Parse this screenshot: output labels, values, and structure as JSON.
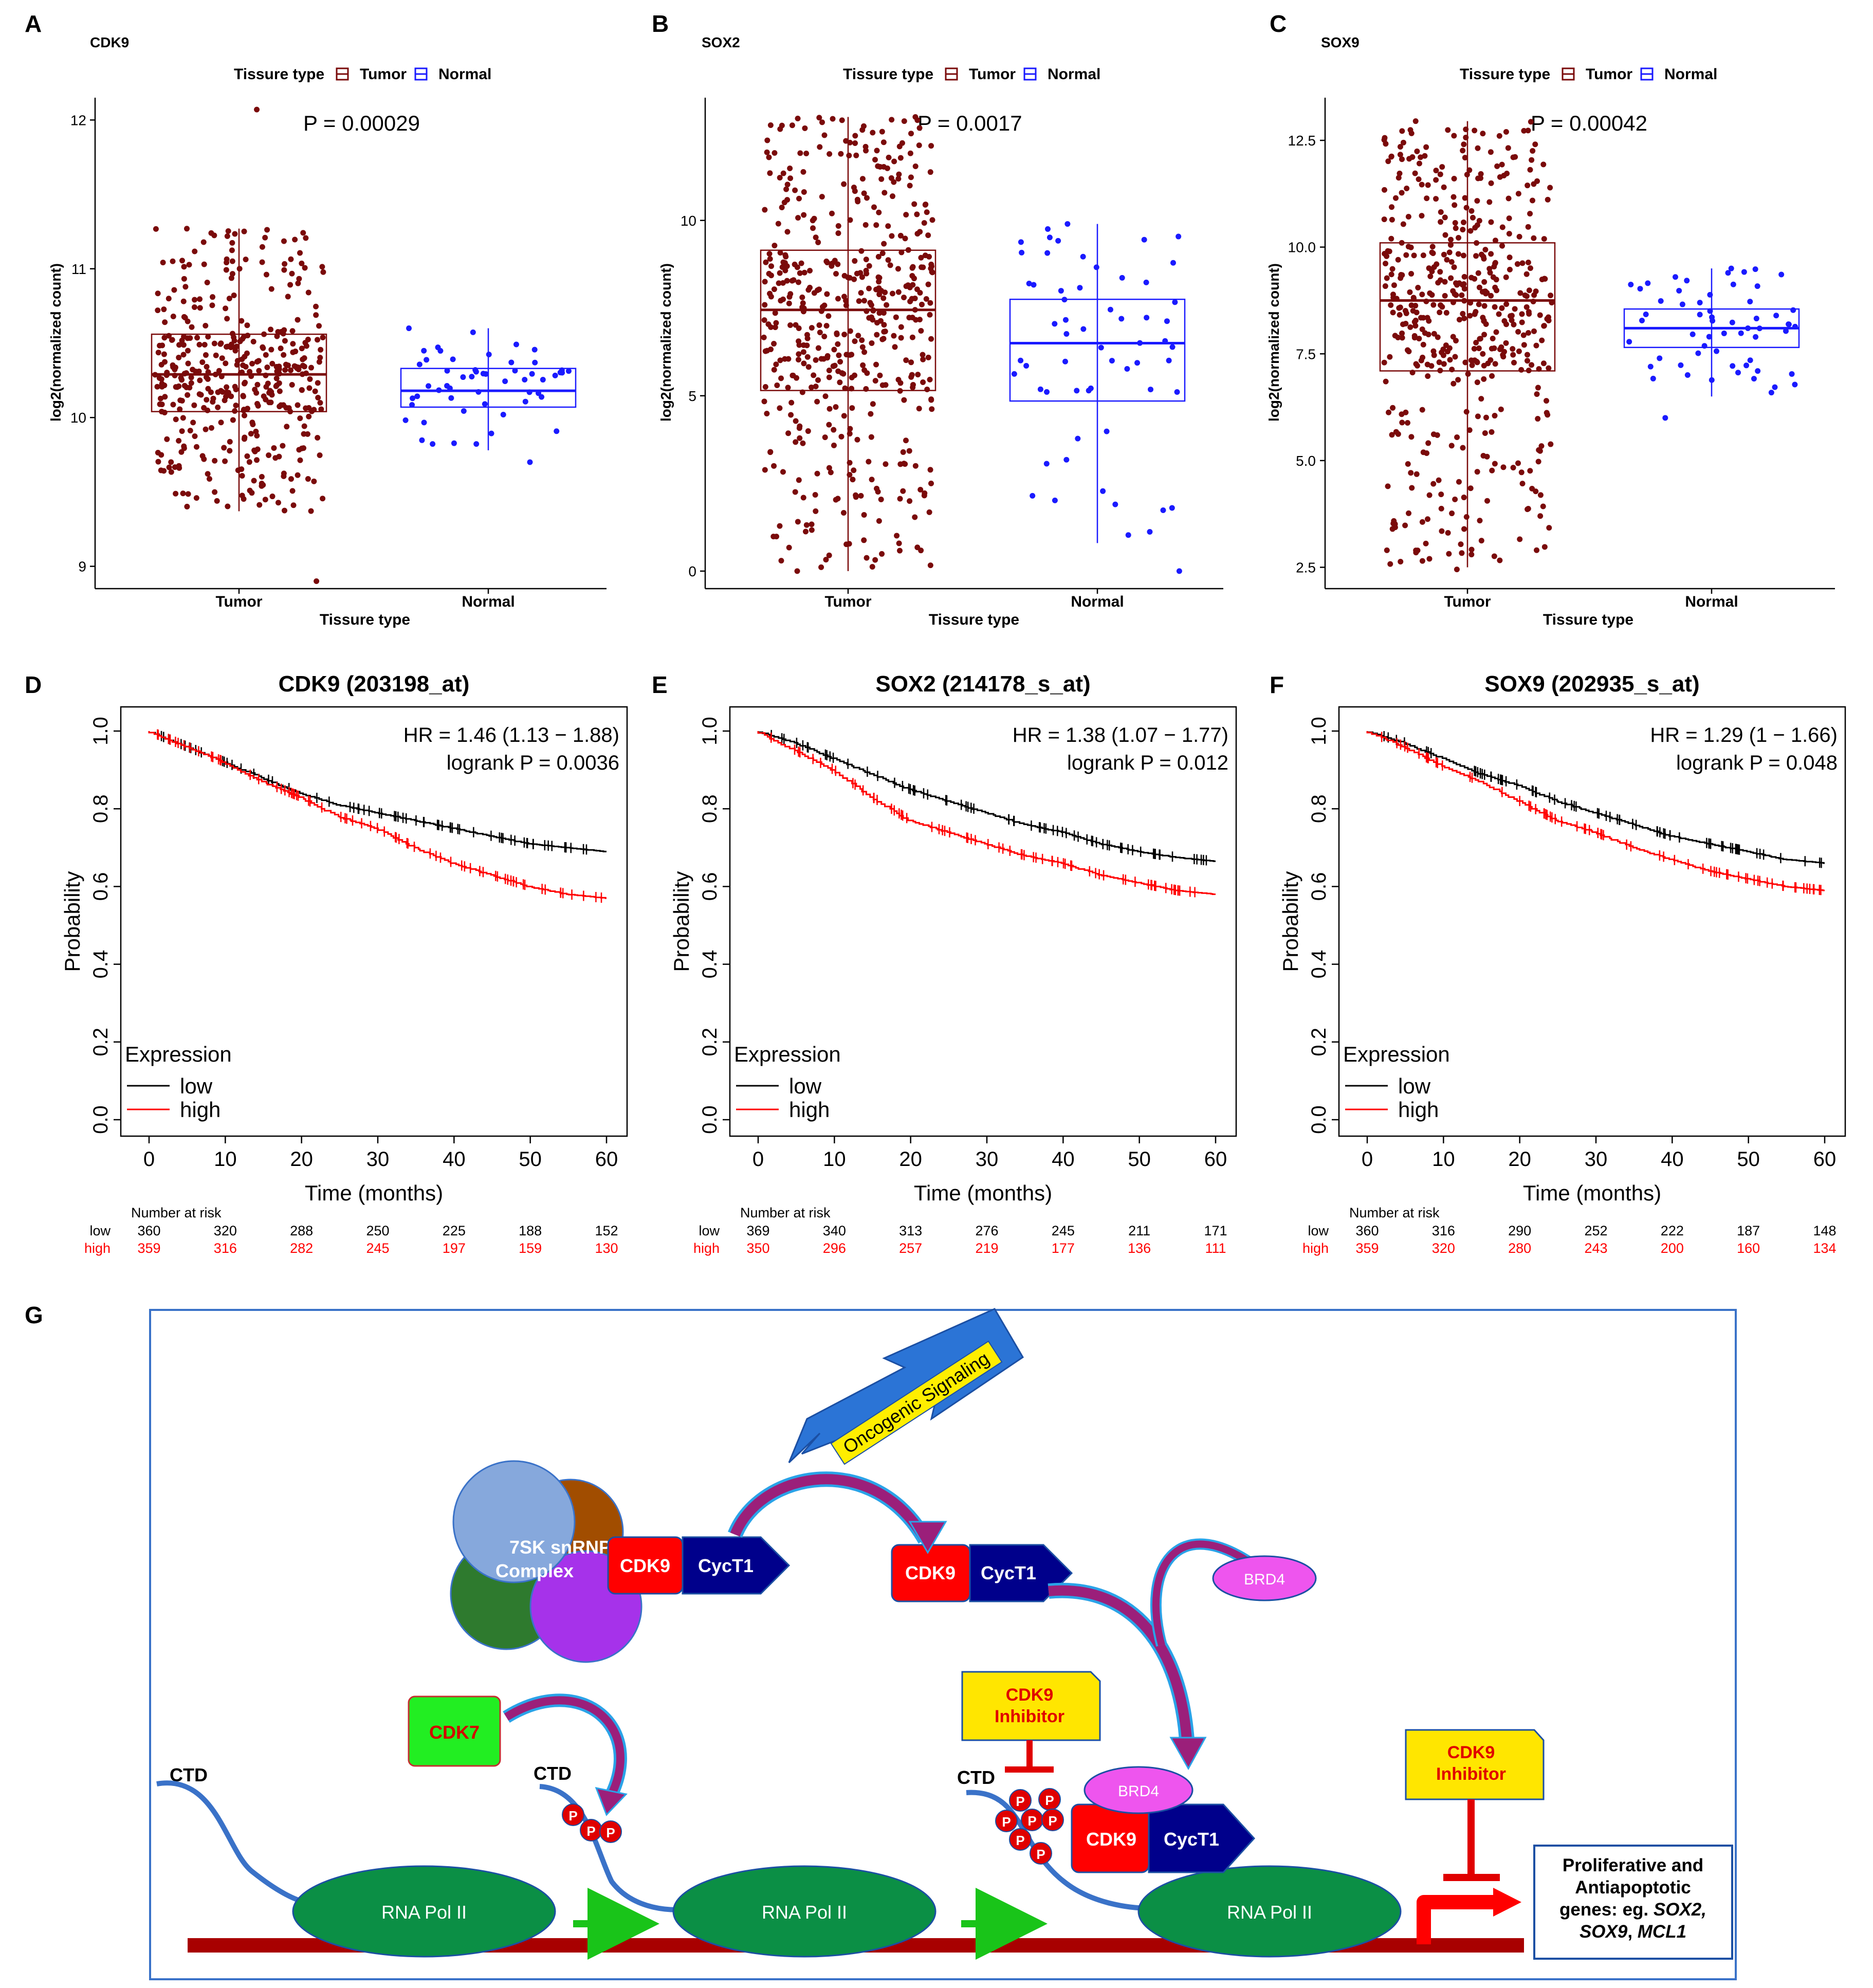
{
  "panel_labels": [
    "A",
    "B",
    "C",
    "D",
    "E",
    "F",
    "G"
  ],
  "colors": {
    "tumor": "#7a0a0a",
    "normal": "#1a1aff",
    "low": "#000000",
    "high": "#ff0000",
    "cdk9": "#ff0000",
    "cyct1": "#00008b",
    "pol": "#0b8f45",
    "dna": "#a80000",
    "inhibitor_fill": "#ffe600",
    "cdk7": "#22ee22",
    "brd4": "#ee55ee",
    "frame": "#3a72c8"
  },
  "boxplots": [
    {
      "title": "CDK9",
      "legend": {
        "title": "Tissure type",
        "items": [
          "Tumor",
          "Normal"
        ]
      },
      "pvalue": "P = 0.00029",
      "ylabel": "log2(normalized count)",
      "xlabel": "Tissure type",
      "ticks": [
        "9",
        "10",
        "11",
        "12"
      ],
      "chart_data": {
        "type": "box",
        "categories": [
          "Tumor",
          "Normal"
        ],
        "ylim": [
          8.85,
          12.15
        ],
        "yticks": [
          9,
          10,
          11,
          12
        ],
        "series": [
          {
            "name": "Tumor",
            "q1": 10.04,
            "median": 10.29,
            "q3": 10.56,
            "whisker_low": 9.37,
            "whisker_high": 11.27,
            "n": 420,
            "min": 8.9,
            "max": 12.07
          },
          {
            "name": "Normal",
            "q1": 10.07,
            "median": 10.18,
            "q3": 10.33,
            "whisker_low": 9.78,
            "whisker_high": 10.6,
            "n": 55,
            "min": 9.7,
            "max": 10.6
          }
        ]
      }
    },
    {
      "title": "SOX2",
      "legend": {
        "title": "Tissure type",
        "items": [
          "Tumor",
          "Normal"
        ]
      },
      "pvalue": "P = 0.0017",
      "ylabel": "log2(normalized count)",
      "xlabel": "Tissure type",
      "ticks": [
        "0",
        "5",
        "10"
      ],
      "chart_data": {
        "type": "box",
        "categories": [
          "Tumor",
          "Normal"
        ],
        "ylim": [
          -0.5,
          13.5
        ],
        "yticks": [
          0,
          5,
          10
        ],
        "series": [
          {
            "name": "Tumor",
            "q1": 5.15,
            "median": 7.45,
            "q3": 9.15,
            "whisker_low": 0,
            "whisker_high": 12.95,
            "n": 500,
            "min": 0,
            "max": 12.95
          },
          {
            "name": "Normal",
            "q1": 4.85,
            "median": 6.5,
            "q3": 7.75,
            "whisker_low": 0.8,
            "whisker_high": 9.9,
            "n": 60,
            "min": 0,
            "max": 9.9
          }
        ]
      }
    },
    {
      "title": "SOX9",
      "legend": {
        "title": "Tissure type",
        "items": [
          "Tumor",
          "Normal"
        ]
      },
      "pvalue": "P = 0.00042",
      "ylabel": "log2(normalized count)",
      "xlabel": "Tissure type",
      "ticks": [
        "2.5",
        "5.0",
        "7.5",
        "10.0",
        "12.5"
      ],
      "chart_data": {
        "type": "box",
        "categories": [
          "Tumor",
          "Normal"
        ],
        "ylim": [
          2.0,
          13.5
        ],
        "yticks": [
          2.5,
          5.0,
          7.5,
          10.0,
          12.5
        ],
        "series": [
          {
            "name": "Tumor",
            "q1": 7.1,
            "median": 8.75,
            "q3": 10.1,
            "whisker_low": 2.5,
            "whisker_high": 12.95,
            "n": 500,
            "min": 2.45,
            "max": 12.95
          },
          {
            "name": "Normal",
            "q1": 7.65,
            "median": 8.1,
            "q3": 8.55,
            "whisker_low": 6.5,
            "whisker_high": 9.5,
            "n": 60,
            "min": 6.0,
            "max": 9.5
          }
        ]
      }
    }
  ],
  "km_plots": [
    {
      "title": "CDK9 (203198_at)",
      "hr": "HR = 1.46 (1.13 − 1.88)",
      "logrank": "logrank P = 0.0036",
      "ylabel": "Probability",
      "xlabel": "Time (months)",
      "legend": {
        "title": "Expression",
        "items": [
          "low",
          "high"
        ]
      },
      "xticks": [
        "0",
        "10",
        "20",
        "30",
        "40",
        "50",
        "60"
      ],
      "yticks": [
        "0.0",
        "0.2",
        "0.4",
        "0.6",
        "0.8",
        "1.0"
      ],
      "risk": {
        "title": "Number at risk",
        "labels": [
          "low",
          "high"
        ],
        "low": [
          "360",
          "320",
          "288",
          "250",
          "225",
          "188",
          "152"
        ],
        "high": [
          "359",
          "316",
          "282",
          "245",
          "197",
          "159",
          "130"
        ]
      },
      "chart_data": {
        "type": "line",
        "xlim": [
          0,
          60
        ],
        "ylim": [
          0,
          1
        ],
        "series": [
          {
            "name": "low",
            "x": [
              0,
              5,
              10,
              15,
              20,
              25,
              30,
              35,
              40,
              45,
              50,
              55,
              60
            ],
            "y": [
              1.0,
              0.96,
              0.92,
              0.88,
              0.84,
              0.81,
              0.79,
              0.77,
              0.75,
              0.73,
              0.71,
              0.7,
              0.69
            ]
          },
          {
            "name": "high",
            "x": [
              0,
              5,
              10,
              15,
              20,
              25,
              30,
              35,
              40,
              45,
              50,
              55,
              60
            ],
            "y": [
              1.0,
              0.96,
              0.92,
              0.87,
              0.83,
              0.78,
              0.75,
              0.7,
              0.66,
              0.63,
              0.6,
              0.58,
              0.57
            ]
          }
        ]
      }
    },
    {
      "title": "SOX2 (214178_s_at)",
      "hr": "HR = 1.38 (1.07 − 1.77)",
      "logrank": "logrank P = 0.012",
      "ylabel": "Probability",
      "xlabel": "Time (months)",
      "legend": {
        "title": "Expression",
        "items": [
          "low",
          "high"
        ]
      },
      "xticks": [
        "0",
        "10",
        "20",
        "30",
        "40",
        "50",
        "60"
      ],
      "yticks": [
        "0.0",
        "0.2",
        "0.4",
        "0.6",
        "0.8",
        "1.0"
      ],
      "risk": {
        "title": "Number at risk",
        "labels": [
          "low",
          "high"
        ],
        "low": [
          "369",
          "340",
          "313",
          "276",
          "245",
          "211",
          "171"
        ],
        "high": [
          "350",
          "296",
          "257",
          "219",
          "177",
          "136",
          "111"
        ]
      },
      "chart_data": {
        "type": "line",
        "xlim": [
          0,
          60
        ],
        "ylim": [
          0,
          1
        ],
        "series": [
          {
            "name": "low",
            "x": [
              0,
              5,
              10,
              15,
              20,
              25,
              30,
              35,
              40,
              45,
              50,
              55,
              60
            ],
            "y": [
              1.0,
              0.97,
              0.93,
              0.89,
              0.85,
              0.82,
              0.79,
              0.76,
              0.74,
              0.71,
              0.69,
              0.675,
              0.665
            ]
          },
          {
            "name": "high",
            "x": [
              0,
              5,
              10,
              15,
              20,
              25,
              30,
              35,
              40,
              45,
              50,
              55,
              60
            ],
            "y": [
              1.0,
              0.95,
              0.9,
              0.83,
              0.77,
              0.74,
              0.71,
              0.68,
              0.66,
              0.63,
              0.61,
              0.59,
              0.58
            ]
          }
        ]
      }
    },
    {
      "title": "SOX9 (202935_s_at)",
      "hr": "HR = 1.29 (1 − 1.66)",
      "logrank": "logrank P = 0.048",
      "ylabel": "Probability",
      "xlabel": "Time (months)",
      "legend": {
        "title": "Expression",
        "items": [
          "low",
          "high"
        ]
      },
      "xticks": [
        "0",
        "10",
        "20",
        "30",
        "40",
        "50",
        "60"
      ],
      "yticks": [
        "0.0",
        "0.2",
        "0.4",
        "0.6",
        "0.8",
        "1.0"
      ],
      "risk": {
        "title": "Number at risk",
        "labels": [
          "low",
          "high"
        ],
        "low": [
          "360",
          "316",
          "290",
          "252",
          "222",
          "187",
          "148"
        ],
        "high": [
          "359",
          "320",
          "280",
          "243",
          "200",
          "160",
          "134"
        ]
      },
      "chart_data": {
        "type": "line",
        "xlim": [
          0,
          60
        ],
        "ylim": [
          0,
          1
        ],
        "series": [
          {
            "name": "low",
            "x": [
              0,
              5,
              10,
              15,
              20,
              25,
              30,
              35,
              40,
              45,
              50,
              55,
              60
            ],
            "y": [
              1.0,
              0.97,
              0.93,
              0.89,
              0.86,
              0.82,
              0.79,
              0.76,
              0.73,
              0.71,
              0.69,
              0.67,
              0.66
            ]
          },
          {
            "name": "high",
            "x": [
              0,
              5,
              10,
              15,
              20,
              25,
              30,
              35,
              40,
              45,
              50,
              55,
              60
            ],
            "y": [
              1.0,
              0.96,
              0.91,
              0.87,
              0.82,
              0.77,
              0.74,
              0.7,
              0.67,
              0.64,
              0.62,
              0.6,
              0.59
            ]
          }
        ]
      }
    }
  ],
  "diagram": {
    "oncogenic": "Oncogenic Signaling",
    "snrnp_line1": "7SK snRNP",
    "snrnp_line2": "Complex",
    "cdk9": "CDK9",
    "cyct1": "CycT1",
    "brd4": "BRD4",
    "cdk7": "CDK7",
    "ctd": "CTD",
    "p": "P",
    "rna_pol": "RNA Pol II",
    "inhibitor_line1": "CDK9",
    "inhibitor_line2": "Inhibitor",
    "genes_line1": "Proliferative and",
    "genes_line2": "Antiapoptotic",
    "genes_line3_pre": "genes: eg. ",
    "genes_sox2": "SOX2,",
    "genes_sox9": "SOX9",
    "genes_sep": ", ",
    "genes_mcl1": "MCL1"
  }
}
